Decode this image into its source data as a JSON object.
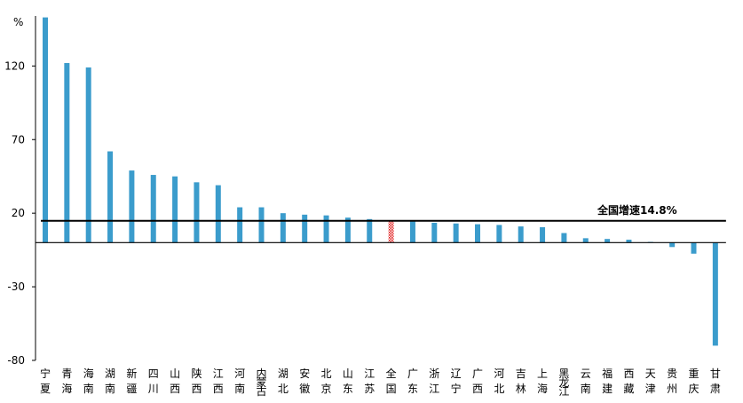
{
  "chart_data": {
    "type": "bar",
    "unit": "%",
    "yticks": [
      -80,
      -30,
      20,
      70,
      120
    ],
    "ylim": [
      -80,
      160
    ],
    "colors": {
      "bar": "#3b9ccc",
      "highlight": "#e02020",
      "reference_line": "#000000",
      "axis": "#000000"
    },
    "highlight_category": "全国",
    "reference": {
      "value": 14.8,
      "label": "全国增速14.8%"
    },
    "categories": [
      [
        "宁",
        "夏"
      ],
      [
        "青",
        "海"
      ],
      [
        "海",
        "南"
      ],
      [
        "湖",
        "南"
      ],
      [
        "新",
        "疆"
      ],
      [
        "四",
        "川"
      ],
      [
        "山",
        "西"
      ],
      [
        "陕",
        "西"
      ],
      [
        "江",
        "西"
      ],
      [
        "河",
        "南"
      ],
      [
        "内",
        "蒙",
        "古"
      ],
      [
        "湖",
        "北"
      ],
      [
        "安",
        "徽"
      ],
      [
        "北",
        "京"
      ],
      [
        "山",
        "东"
      ],
      [
        "江",
        "苏"
      ],
      [
        "全",
        "国"
      ],
      [
        "广",
        "东"
      ],
      [
        "浙",
        "江"
      ],
      [
        "辽",
        "宁"
      ],
      [
        "广",
        "西"
      ],
      [
        "河",
        "北"
      ],
      [
        "吉",
        "林"
      ],
      [
        "上",
        "海"
      ],
      [
        "黑",
        "龙",
        "江"
      ],
      [
        "云",
        "南"
      ],
      [
        "福",
        "建"
      ],
      [
        "西",
        "藏"
      ],
      [
        "天",
        "津"
      ],
      [
        "贵",
        "州"
      ],
      [
        "重",
        "庆"
      ],
      [
        "甘",
        "肃"
      ]
    ],
    "values": [
      153,
      122,
      119,
      62,
      49,
      46,
      45,
      41,
      39,
      24,
      24,
      20,
      19,
      18.5,
      17,
      16,
      14.8,
      14.5,
      13.5,
      13,
      12.5,
      12,
      11,
      10.5,
      6.5,
      3,
      2.5,
      2,
      0.5,
      -3,
      -7.5,
      -70
    ]
  }
}
